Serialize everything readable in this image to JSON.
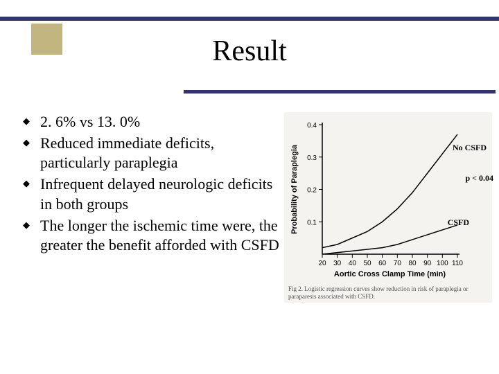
{
  "title": "Result",
  "bullets": [
    "2. 6% vs 13. 0%",
    "Reduced immediate deficits, particularly paraplegia",
    "Infrequent delayed neurologic deficits in both groups",
    "The longer the ischemic time were, the greater the benefit afforded with CSFD"
  ],
  "chart": {
    "type": "line",
    "xlabel": "Aortic Cross Clamp Time (min)",
    "ylabel": "Probability of Paraplegia",
    "xlim": [
      20,
      110
    ],
    "ylim": [
      0,
      0.4
    ],
    "xtick_step": 10,
    "ytick_step": 0.1,
    "x_ticks": [
      20,
      30,
      40,
      50,
      60,
      70,
      80,
      90,
      100,
      110
    ],
    "y_ticks": [
      0.1,
      0.2,
      0.3,
      0.4
    ],
    "series": [
      {
        "name": "No CSFD",
        "color": "#000000",
        "line_width": 1.5,
        "points": [
          {
            "x": 20,
            "y": 0.02
          },
          {
            "x": 30,
            "y": 0.03
          },
          {
            "x": 40,
            "y": 0.05
          },
          {
            "x": 50,
            "y": 0.07
          },
          {
            "x": 60,
            "y": 0.1
          },
          {
            "x": 70,
            "y": 0.14
          },
          {
            "x": 80,
            "y": 0.19
          },
          {
            "x": 90,
            "y": 0.25
          },
          {
            "x": 100,
            "y": 0.31
          },
          {
            "x": 110,
            "y": 0.37
          }
        ]
      },
      {
        "name": "CSFD",
        "color": "#000000",
        "line_width": 1.5,
        "points": [
          {
            "x": 20,
            "y": 0.0
          },
          {
            "x": 30,
            "y": 0.005
          },
          {
            "x": 40,
            "y": 0.01
          },
          {
            "x": 50,
            "y": 0.015
          },
          {
            "x": 60,
            "y": 0.02
          },
          {
            "x": 70,
            "y": 0.03
          },
          {
            "x": 80,
            "y": 0.045
          },
          {
            "x": 90,
            "y": 0.06
          },
          {
            "x": 100,
            "y": 0.075
          },
          {
            "x": 110,
            "y": 0.09
          }
        ]
      }
    ],
    "p_value_label": "p < 0.04",
    "label_fontsize": 11,
    "tick_fontsize": 10,
    "background_color": "#f5f3f0",
    "axis_color": "#000000",
    "tick_color": "#000000",
    "caption": "Fig 2. Logistic regression curves show reduction in risk of paraplegia or paraparesis associated with CSFD."
  },
  "colors": {
    "top_border": "#343468",
    "divider": "#343468",
    "accent_box": "#c3b580",
    "text": "#000000",
    "background": "#ffffff"
  }
}
